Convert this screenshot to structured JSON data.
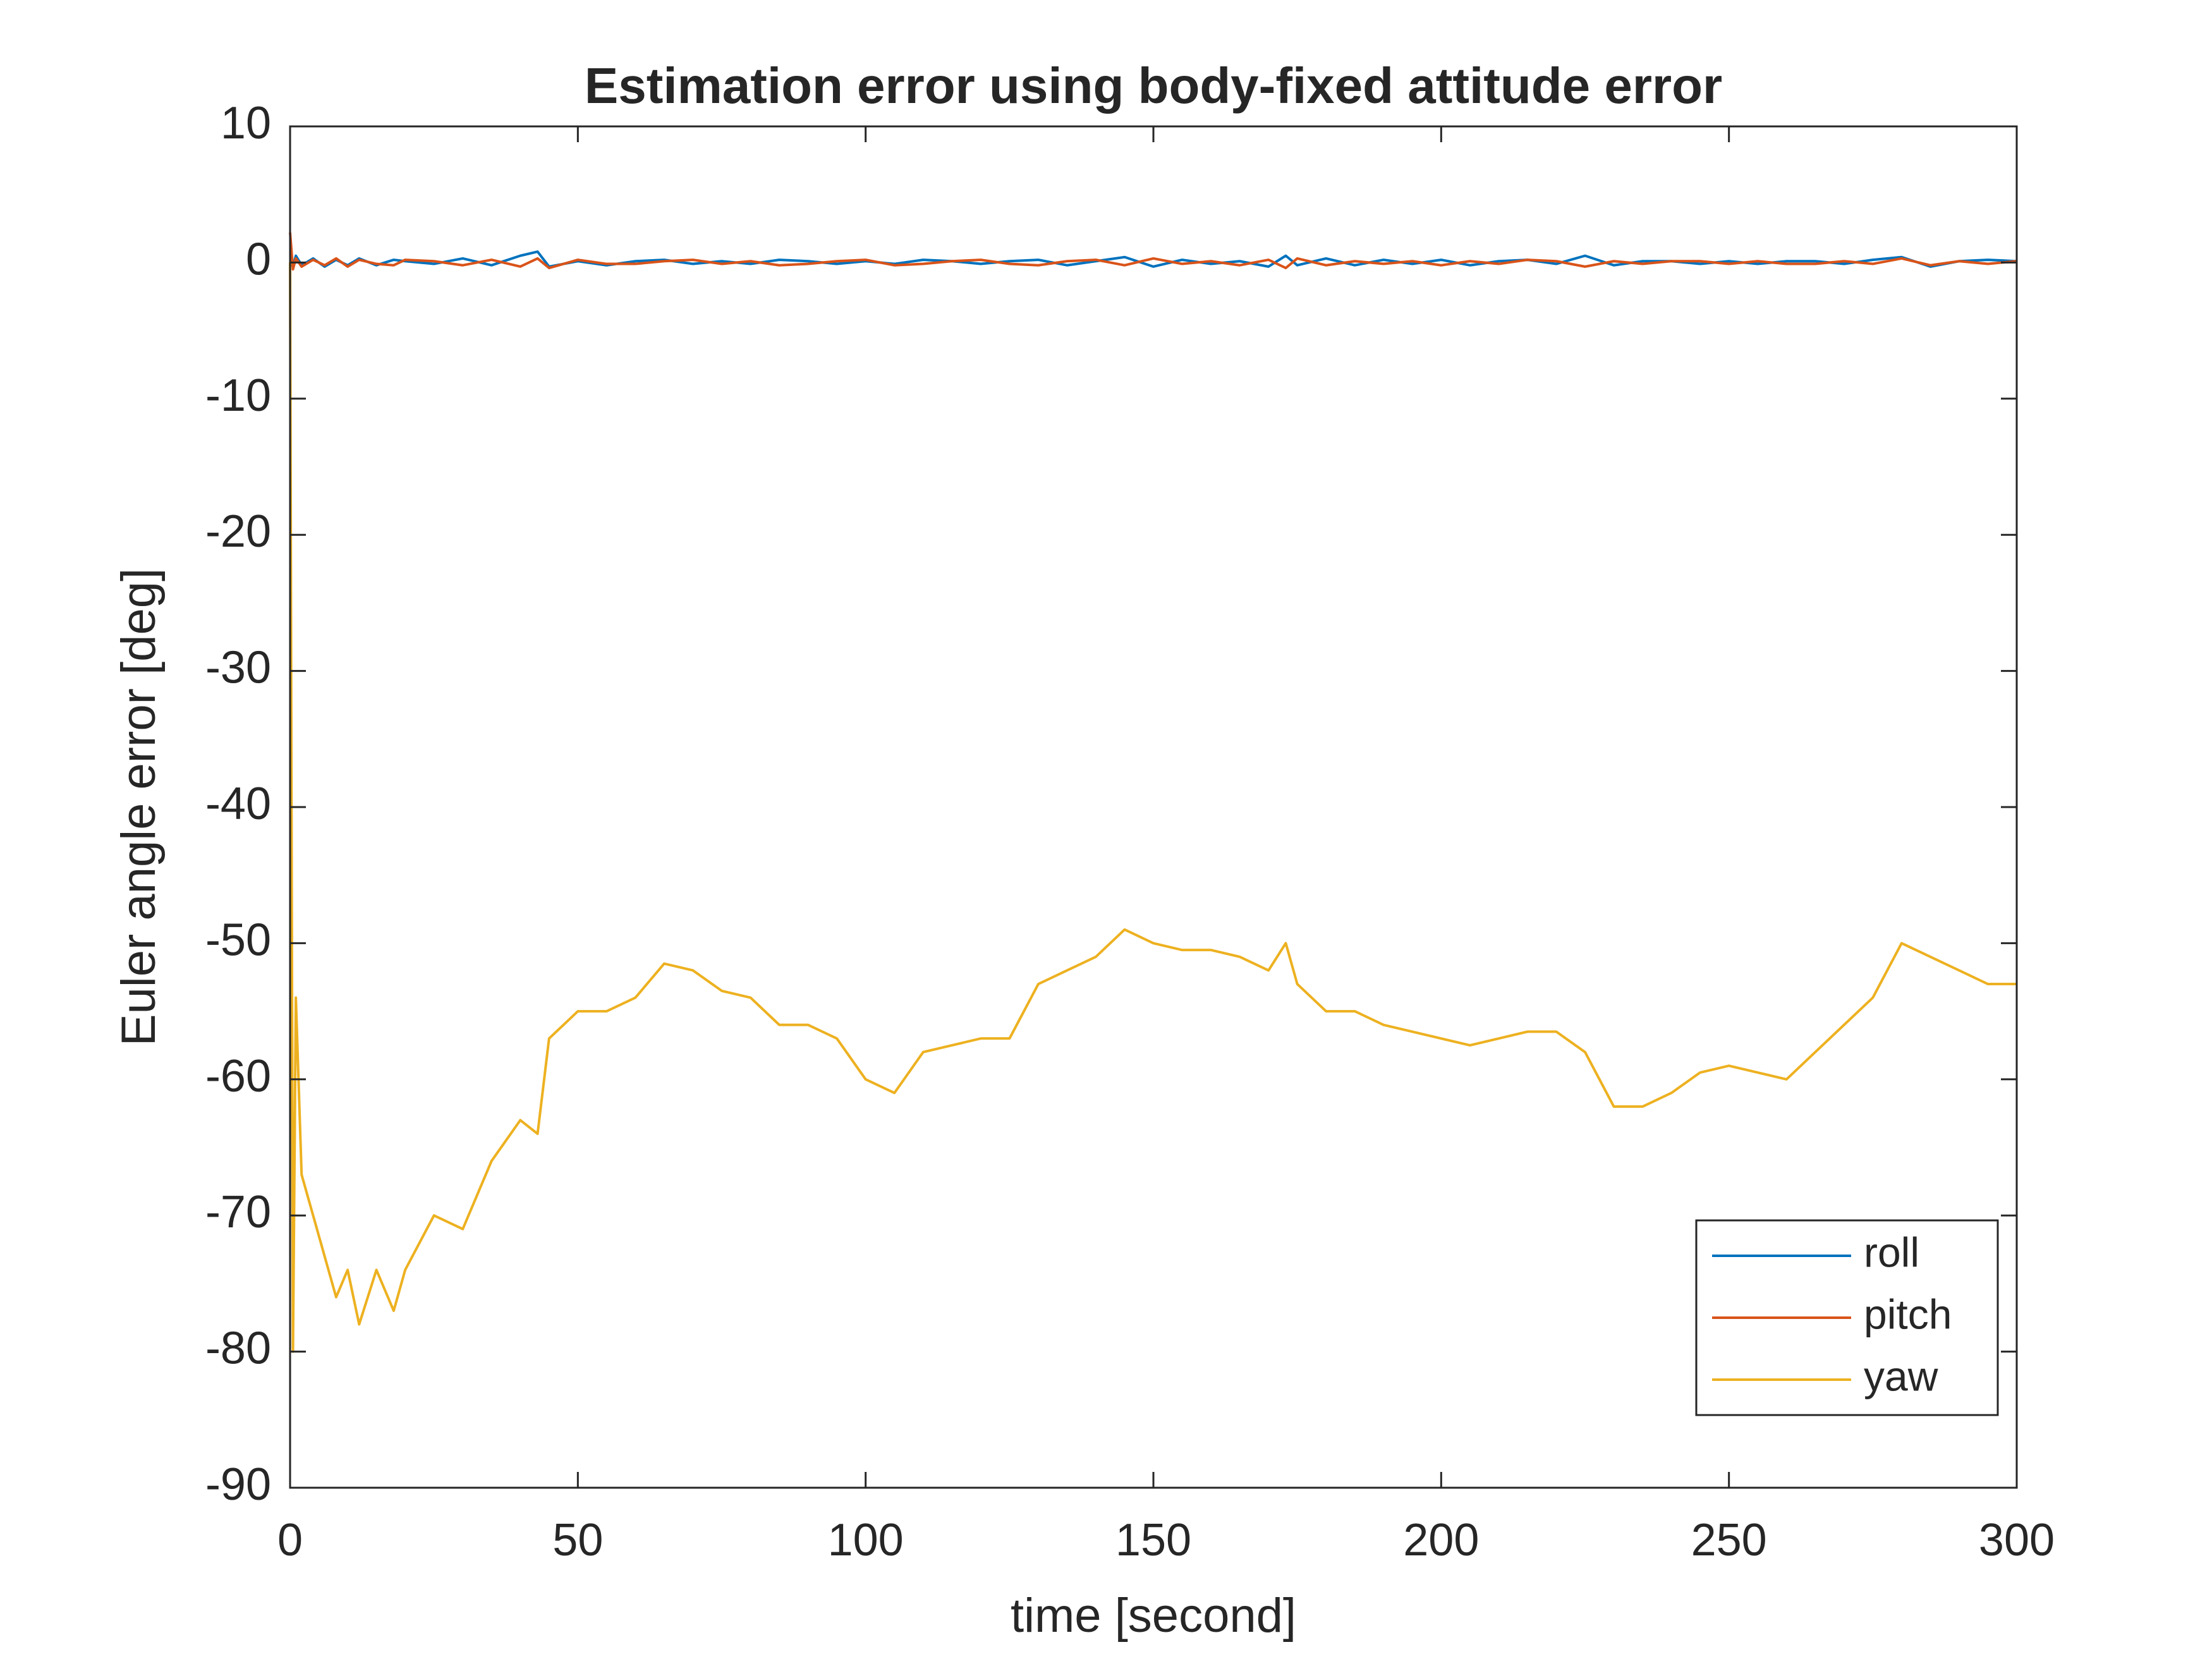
{
  "chart_data": {
    "type": "line",
    "title": "Estimation error using body-fixed attitude error",
    "xlabel": "time [second]",
    "ylabel": "Euler angle error [deg]",
    "x": [
      0,
      0.5,
      1,
      2,
      4,
      6,
      8,
      10,
      12,
      15,
      18,
      20,
      25,
      30,
      35,
      40,
      43,
      45,
      50,
      55,
      60,
      65,
      70,
      75,
      80,
      85,
      90,
      95,
      100,
      105,
      110,
      115,
      120,
      125,
      130,
      135,
      140,
      145,
      150,
      155,
      160,
      165,
      170,
      173,
      175,
      180,
      185,
      190,
      195,
      200,
      205,
      210,
      215,
      220,
      225,
      230,
      235,
      240,
      245,
      250,
      255,
      260,
      265,
      270,
      275,
      280,
      285,
      290,
      295,
      300
    ],
    "series": [
      {
        "name": "roll",
        "color": "#0072bd",
        "values": [
          0,
          -0.3,
          0.5,
          -0.2,
          0.3,
          -0.3,
          0.2,
          -0.2,
          0.3,
          -0.2,
          0.2,
          0.1,
          -0.1,
          0.3,
          -0.2,
          0.5,
          0.8,
          -0.3,
          0.1,
          -0.2,
          0.1,
          0.2,
          -0.1,
          0.1,
          -0.1,
          0.2,
          0.1,
          -0.1,
          0.1,
          -0.1,
          0.2,
          0.1,
          -0.1,
          0.1,
          0.2,
          -0.2,
          0.1,
          0.4,
          -0.3,
          0.2,
          -0.1,
          0.1,
          -0.3,
          0.5,
          -0.2,
          0.3,
          -0.2,
          0.2,
          -0.1,
          0.2,
          -0.2,
          0.1,
          0.2,
          -0.1,
          0.5,
          -0.2,
          0.1,
          0.1,
          -0.1,
          0.1,
          -0.1,
          0.1,
          0.1,
          -0.1,
          0.2,
          0.4,
          -0.3,
          0.1,
          0.2,
          0.1
        ]
      },
      {
        "name": "pitch",
        "color": "#d95319",
        "values": [
          2.2,
          -0.5,
          0.3,
          -0.3,
          0.2,
          -0.2,
          0.3,
          -0.3,
          0.2,
          -0.1,
          -0.2,
          0.2,
          0.1,
          -0.2,
          0.2,
          -0.3,
          0.3,
          -0.4,
          0.2,
          -0.1,
          -0.1,
          0.1,
          0.2,
          -0.1,
          0.1,
          -0.2,
          -0.1,
          0.1,
          0.2,
          -0.2,
          -0.1,
          0.1,
          0.2,
          -0.1,
          -0.2,
          0.1,
          0.2,
          -0.2,
          0.3,
          -0.1,
          0.1,
          -0.2,
          0.2,
          -0.4,
          0.3,
          -0.2,
          0.1,
          -0.1,
          0.1,
          -0.2,
          0.1,
          -0.1,
          0.2,
          0.1,
          -0.3,
          0.1,
          -0.1,
          0.1,
          0.1,
          -0.1,
          0.1,
          -0.1,
          -0.1,
          0.1,
          -0.1,
          0.3,
          -0.2,
          0.1,
          -0.1,
          0.1
        ]
      },
      {
        "name": "yaw",
        "color": "#edb120",
        "values": [
          0,
          -80,
          -54,
          -67,
          -70,
          -73,
          -76,
          -74,
          -78,
          -74,
          -77,
          -74,
          -70,
          -71,
          -66,
          -63,
          -64,
          -57,
          -55,
          -55,
          -54,
          -51.5,
          -52,
          -53.5,
          -54,
          -56,
          -56,
          -57,
          -60,
          -61,
          -58,
          -57.5,
          -57,
          -57,
          -53,
          -52,
          -51,
          -49,
          -50,
          -50.5,
          -50.5,
          -51,
          -52,
          -50,
          -53,
          -55,
          -55,
          -56,
          -56.5,
          -57,
          -57.5,
          -57,
          -56.5,
          -56.5,
          -58,
          -62,
          -62,
          -61,
          -59.5,
          -59,
          -59.5,
          -60,
          -58,
          -56,
          -54,
          -50,
          -51,
          -52,
          -53,
          -53
        ]
      }
    ],
    "xlim": [
      0,
      300
    ],
    "xticks": [
      0,
      50,
      100,
      150,
      200,
      250,
      300
    ],
    "ylim": [
      -90,
      10
    ],
    "yticks": [
      -90,
      -80,
      -70,
      -60,
      -50,
      -40,
      -30,
      -20,
      -10,
      0,
      10
    ],
    "legend": "southeast",
    "grid": false
  }
}
